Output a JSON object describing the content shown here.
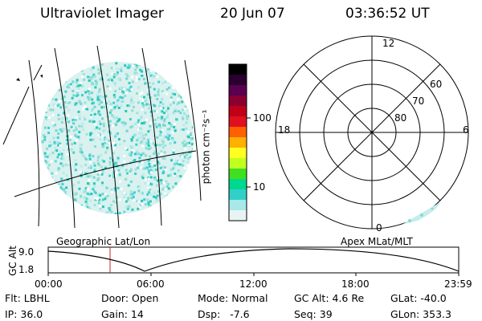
{
  "header": {
    "instrument": "Ultraviolet Imager",
    "date": "20 Jun 07",
    "time": "03:36:52 UT"
  },
  "left_panel": {
    "label": "Geographic Lat/Lon"
  },
  "colorbar": {
    "unit_label": "photon cm⁻²s⁻¹",
    "ticks": [
      "100",
      "10"
    ],
    "colors": [
      "#000000",
      "#2a0030",
      "#5a0050",
      "#8a0030",
      "#c00018",
      "#e01020",
      "#ff6000",
      "#ffb000",
      "#ffff20",
      "#c0ff20",
      "#40e020",
      "#00d890",
      "#30d0c8",
      "#a8e8e8",
      "#e8f4f4"
    ]
  },
  "polar_panel": {
    "label": "Apex MLat/MLT",
    "mlt_labels": {
      "top": "12",
      "left": "18",
      "right": "6",
      "bottom": "0"
    },
    "lat_labels": [
      "60",
      "70",
      "80"
    ]
  },
  "altitude_plot": {
    "axis_label": "GC Alt",
    "y_ticks": [
      "9.0",
      "1.8"
    ],
    "x_ticks": [
      "00:00",
      "06:00",
      "12:00",
      "18:00",
      "23:59"
    ]
  },
  "info": {
    "flt": "Flt: LBHL",
    "ip": "IP: 36.0",
    "door": "Door: Open",
    "gain": "Gain: 14",
    "mode": "Mode: Normal",
    "dsp": "Dsp:   -7.6",
    "gc_alt": "GC Alt: 4.6 Re",
    "seq": "Seq: 39",
    "glat": "GLat: -40.0",
    "glon": "GLon: 353.3"
  }
}
